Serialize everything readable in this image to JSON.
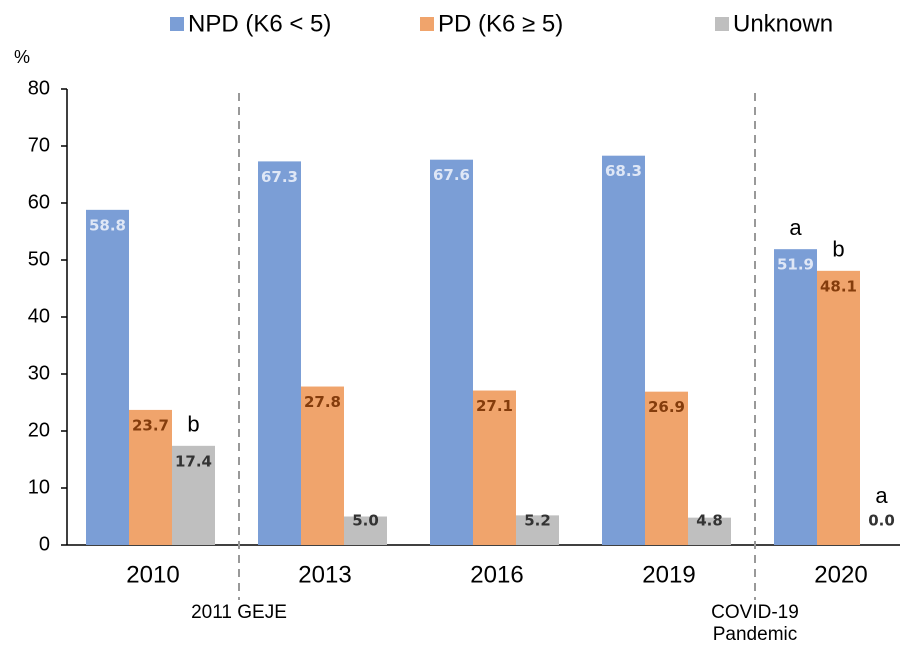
{
  "chart_data": {
    "type": "bar",
    "y_unit": "%",
    "categories": [
      "2010",
      "2013",
      "2016",
      "2019",
      "2020"
    ],
    "series": [
      {
        "name": "NPD (K6 < 5)",
        "color": "#7b9ed6",
        "label_color": "#dfe7f6",
        "values": [
          58.8,
          67.3,
          67.6,
          68.3,
          51.9
        ],
        "value_labels": [
          "58.8",
          "67.3",
          "67.6",
          "68.3",
          "51.9"
        ]
      },
      {
        "name": "PD (K6 ≥ 5)",
        "color": "#f0a46c",
        "label_color": "#843c0c",
        "values": [
          23.7,
          27.8,
          27.1,
          26.9,
          48.1
        ],
        "value_labels": [
          "23.7",
          "27.8",
          "27.1",
          "26.9",
          "48.1"
        ]
      },
      {
        "name": "Unknown",
        "color": "#bfbfbf",
        "label_color": "#333333",
        "values": [
          17.4,
          5.0,
          5.2,
          4.8,
          0.0
        ],
        "value_labels": [
          "17.4",
          "5.0",
          "5.2",
          "4.8",
          "0.0"
        ]
      }
    ],
    "ylim": [
      0,
      80
    ],
    "yticks": [
      0,
      10,
      20,
      30,
      40,
      50,
      60,
      70,
      80
    ],
    "grid": false,
    "legend": "top",
    "letters": [
      {
        "text": "b",
        "series": 2,
        "category": 0
      },
      {
        "text": "a",
        "series": 0,
        "category": 4
      },
      {
        "text": "b",
        "series": 1,
        "category": 4
      },
      {
        "text": "a",
        "series": 2,
        "category": 4
      }
    ],
    "periods": [
      "2011 GEJE",
      "COVID-19 Pandemic"
    ]
  }
}
